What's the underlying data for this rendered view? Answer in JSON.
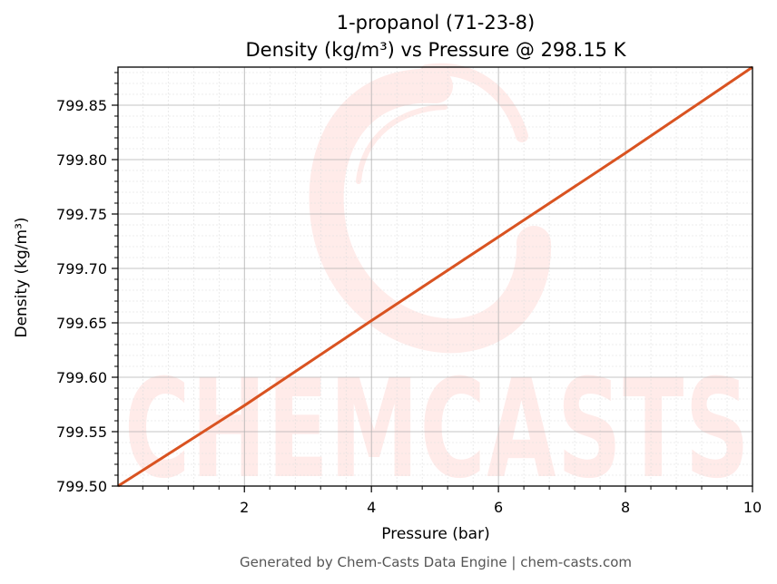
{
  "chart_data": {
    "type": "line",
    "title_lines": [
      "1-propanol (71-23-8)",
      "Density (kg/m³) vs Pressure @ 298.15 K"
    ],
    "xlabel": "Pressure (bar)",
    "ylabel": "Density (kg/m³)",
    "xlim": [
      0.01,
      10
    ],
    "ylim": [
      799.5,
      799.885
    ],
    "x_ticks": [
      2,
      4,
      6,
      8,
      10
    ],
    "x_tick_labels": [
      "2",
      "4",
      "6",
      "8",
      "10"
    ],
    "y_ticks": [
      799.5,
      799.55,
      799.6,
      799.65,
      799.7,
      799.75,
      799.8,
      799.85
    ],
    "y_tick_labels": [
      "799.50",
      "799.55",
      "799.60",
      "799.65",
      "799.70",
      "799.75",
      "799.80",
      "799.85"
    ],
    "grid": true,
    "minor_grid": true,
    "series": [
      {
        "color": "#d95321",
        "x": [
          0.01,
          2,
          4,
          6,
          8,
          10
        ],
        "y": [
          799.5,
          799.574,
          799.652,
          799.729,
          799.806,
          799.885
        ]
      }
    ]
  },
  "watermark": {
    "text": "CHEMCASTS",
    "color": "#ff2a1a"
  },
  "footer": "Generated by Chem-Casts Data Engine | chem-casts.com"
}
